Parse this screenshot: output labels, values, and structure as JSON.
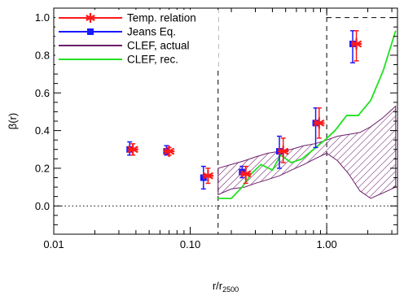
{
  "chart_data": {
    "type": "scatter",
    "xscale": "log",
    "xlim": [
      0.01,
      3.3
    ],
    "ylim": [
      -0.15,
      1.05
    ],
    "xlabel": "r/r",
    "xlabel_sub": "2500",
    "ylabel": "β(r)",
    "xticks": [
      {
        "value": 0.01,
        "label": "0.01"
      },
      {
        "value": 0.1,
        "label": "0.10"
      },
      {
        "value": 1.0,
        "label": "1.00"
      }
    ],
    "yticks": [
      {
        "value": 0.0,
        "label": "0.0"
      },
      {
        "value": 0.2,
        "label": "0.2"
      },
      {
        "value": 0.4,
        "label": "0.4"
      },
      {
        "value": 0.6,
        "label": "0.6"
      },
      {
        "value": 0.8,
        "label": "0.8"
      },
      {
        "value": 1.0,
        "label": "1.0"
      }
    ],
    "legend_position": "top-left",
    "legend": [
      {
        "label": "Temp. relation",
        "color": "#ff1a1a",
        "marker": "asterisk"
      },
      {
        "label": "Jeans Eq.",
        "color": "#1a1aff",
        "marker": "square"
      },
      {
        "label": "CLEF, actual",
        "color": "#6b1e6b",
        "marker": "hatch"
      },
      {
        "label": "CLEF, rec.",
        "color": "#22e022",
        "marker": "line"
      }
    ],
    "series": [
      {
        "name": "Temp. relation",
        "color": "#ff1a1a",
        "points": [
          {
            "x": 0.038,
            "y": 0.3,
            "ylo": 0.27,
            "yhi": 0.33
          },
          {
            "x": 0.07,
            "y": 0.29,
            "ylo": 0.27,
            "yhi": 0.31
          },
          {
            "x": 0.135,
            "y": 0.16,
            "ylo": 0.12,
            "yhi": 0.2
          },
          {
            "x": 0.255,
            "y": 0.17,
            "ylo": 0.12,
            "yhi": 0.21
          },
          {
            "x": 0.48,
            "y": 0.29,
            "ylo": 0.23,
            "yhi": 0.36
          },
          {
            "x": 0.88,
            "y": 0.44,
            "ylo": 0.36,
            "yhi": 0.52
          },
          {
            "x": 1.65,
            "y": 0.86,
            "ylo": 0.77,
            "yhi": 0.93
          }
        ]
      },
      {
        "name": "Jeans Eq.",
        "color": "#1a1aff",
        "points": [
          {
            "x": 0.036,
            "y": 0.3,
            "ylo": 0.27,
            "yhi": 0.34
          },
          {
            "x": 0.067,
            "y": 0.29,
            "ylo": 0.27,
            "yhi": 0.32
          },
          {
            "x": 0.125,
            "y": 0.15,
            "ylo": 0.09,
            "yhi": 0.21
          },
          {
            "x": 0.24,
            "y": 0.18,
            "ylo": 0.15,
            "yhi": 0.21
          },
          {
            "x": 0.45,
            "y": 0.29,
            "ylo": 0.2,
            "yhi": 0.37
          },
          {
            "x": 0.83,
            "y": 0.44,
            "ylo": 0.31,
            "yhi": 0.52
          },
          {
            "x": 1.55,
            "y": 0.86,
            "ylo": 0.76,
            "yhi": 0.93
          }
        ]
      },
      {
        "name": "CLEF, actual",
        "color": "#6b1e6b",
        "type": "band",
        "x": [
          0.16,
          0.2,
          0.25,
          0.3,
          0.37,
          0.45,
          0.55,
          0.68,
          0.82,
          1.0,
          1.2,
          1.45,
          1.75,
          2.1,
          2.6,
          3.2
        ],
        "lower": [
          0.06,
          0.09,
          0.1,
          0.12,
          0.14,
          0.16,
          0.19,
          0.22,
          0.25,
          0.28,
          0.24,
          0.17,
          0.08,
          0.04,
          0.07,
          0.1
        ],
        "upper": [
          0.2,
          0.22,
          0.24,
          0.26,
          0.28,
          0.29,
          0.3,
          0.32,
          0.33,
          0.35,
          0.37,
          0.38,
          0.39,
          0.42,
          0.47,
          0.53
        ]
      },
      {
        "name": "CLEF, rec.",
        "color": "#22e022",
        "type": "line",
        "x": [
          0.16,
          0.2,
          0.24,
          0.28,
          0.33,
          0.4,
          0.46,
          0.55,
          0.66,
          0.8,
          0.97,
          1.15,
          1.4,
          1.7,
          2.1,
          2.6,
          3.2
        ],
        "y": [
          0.04,
          0.04,
          0.1,
          0.17,
          0.22,
          0.19,
          0.27,
          0.23,
          0.25,
          0.3,
          0.35,
          0.4,
          0.48,
          0.48,
          0.56,
          0.72,
          0.93
        ]
      }
    ],
    "reference_lines": [
      {
        "orientation": "horizontal",
        "value": 1.0,
        "style": "dashed",
        "from": 1.0
      },
      {
        "orientation": "horizontal",
        "value": 0.0,
        "style": "dotted"
      },
      {
        "orientation": "vertical",
        "value": 0.16,
        "style": "dashed"
      },
      {
        "orientation": "vertical",
        "value": 1.0,
        "style": "dashed"
      }
    ]
  }
}
